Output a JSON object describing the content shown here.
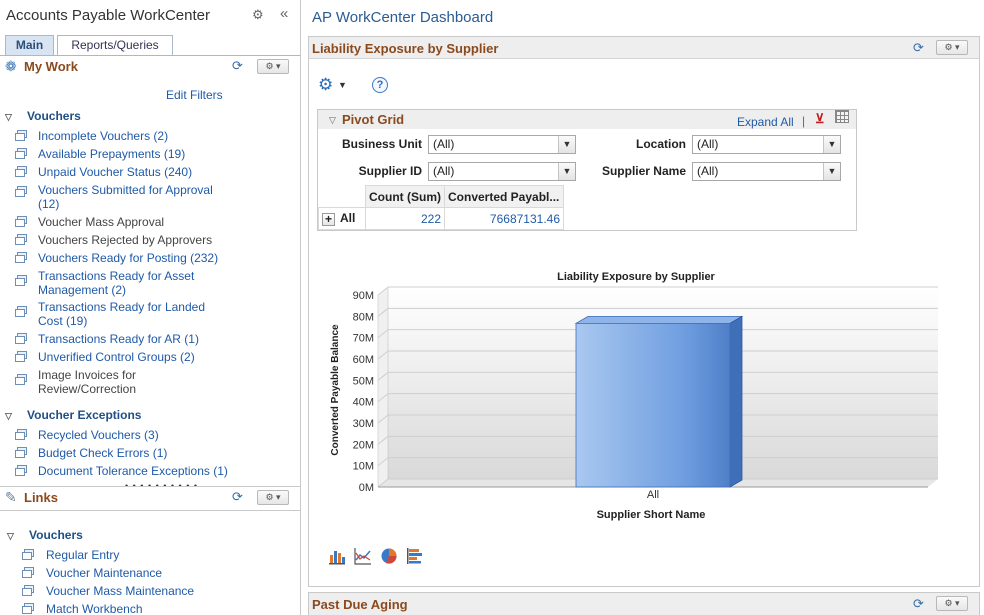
{
  "left": {
    "title": "Accounts Payable WorkCenter",
    "collapse_icon": "double-chevron-left-icon",
    "tabs": [
      {
        "label": "Main"
      },
      {
        "label": "Reports/Queries"
      }
    ],
    "my_work": {
      "title": "My Work",
      "edit_filters": "Edit Filters",
      "groups": [
        {
          "label": "Vouchers",
          "items": [
            {
              "text": "Incomplete Vouchers (2)",
              "link": true
            },
            {
              "text": "Available Prepayments (19)",
              "link": true
            },
            {
              "text": "Unpaid Voucher Status (240)",
              "link": true
            },
            {
              "text": "Vouchers Submitted for Approval (12)",
              "link": true
            },
            {
              "text": "Voucher Mass Approval",
              "link": false
            },
            {
              "text": "Vouchers Rejected by Approvers",
              "link": false
            },
            {
              "text": "Vouchers Ready for Posting (232)",
              "link": true
            },
            {
              "text": "Transactions Ready for Asset Management (2)",
              "link": true
            },
            {
              "text": "Transactions Ready for Landed Cost (19)",
              "link": true
            },
            {
              "text": "Transactions Ready for AR (1)",
              "link": true
            },
            {
              "text": "Unverified Control Groups (2)",
              "link": true
            },
            {
              "text": "Image Invoices for Review/Correction",
              "link": false
            }
          ]
        },
        {
          "label": "Voucher Exceptions",
          "items": [
            {
              "text": "Recycled Vouchers (3)",
              "link": true
            },
            {
              "text": "Budget Check Errors (1)",
              "link": true
            },
            {
              "text": "Document Tolerance Exceptions (1)",
              "link": true
            }
          ]
        }
      ]
    },
    "links": {
      "title": "Links",
      "groups": [
        {
          "label": "Vouchers",
          "items": [
            {
              "text": "Regular Entry"
            },
            {
              "text": "Voucher Maintenance"
            },
            {
              "text": "Voucher Mass Maintenance"
            },
            {
              "text": "Match Workbench"
            }
          ]
        }
      ]
    }
  },
  "dashboard": {
    "title": "AP WorkCenter Dashboard",
    "panel1": {
      "title": "Liability Exposure by Supplier",
      "pivot": {
        "title": "Pivot Grid",
        "expand_all": "Expand All",
        "separator": "|",
        "filters": [
          {
            "label": "Business Unit",
            "value": "(All)"
          },
          {
            "label": "Location",
            "value": "(All)"
          },
          {
            "label": "Supplier ID",
            "value": "(All)"
          },
          {
            "label": "Supplier Name",
            "value": "(All)"
          }
        ],
        "columns": [
          "Count (Sum)",
          "Converted Payabl..."
        ],
        "row": {
          "label": "All",
          "count": "222",
          "converted": "76687131.46"
        }
      }
    },
    "panel2": {
      "title": "Past Due Aging"
    }
  },
  "chart_data": {
    "type": "bar",
    "title": "Liability Exposure by Supplier",
    "xlabel": "Supplier Short Name",
    "ylabel": "Converted Payable Balance",
    "categories": [
      "All"
    ],
    "values": [
      76687131.46
    ],
    "ylim": [
      0,
      90000000
    ],
    "yticks": [
      "0M",
      "10M",
      "20M",
      "30M",
      "40M",
      "50M",
      "60M",
      "70M",
      "80M",
      "90M"
    ],
    "grid": true,
    "style": "3d",
    "colors": {
      "bar": "#6f9ee0",
      "bar_dark": "#3f6fb8"
    }
  },
  "colors": {
    "section_title": "#8a4a1e",
    "link": "#1f5aa8",
    "accent": "#2b6fb5"
  }
}
